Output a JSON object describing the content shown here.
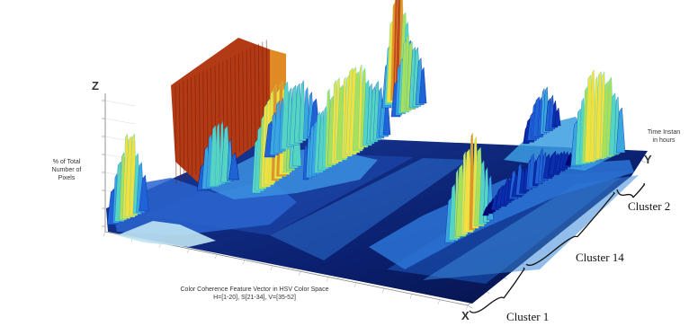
{
  "chart_data": {
    "type": "surface",
    "title": "",
    "axes": {
      "x": {
        "letter": "X",
        "label_lines": [
          "Color Coherence Feature Vector in HSV Color Space",
          "H=[1-20], S[21-34], V=[35-52]"
        ]
      },
      "y": {
        "letter": "Y",
        "label_lines": [
          "Time Instan",
          "in hours"
        ]
      },
      "z": {
        "letter": "Z",
        "label_lines": [
          "% of Total",
          "Number of",
          "Pixels"
        ]
      }
    },
    "annotations": [
      {
        "text": "Cluster 2"
      },
      {
        "text": "Cluster 14"
      },
      {
        "text": "Cluster 1"
      }
    ],
    "colormap": [
      "#000a6e",
      "#0a2fb0",
      "#1f63d6",
      "#3aa6e0",
      "#55d4c2",
      "#a8e05a",
      "#f0e040",
      "#e6902a",
      "#c0481c",
      "#8a1a08"
    ],
    "grid": true
  }
}
